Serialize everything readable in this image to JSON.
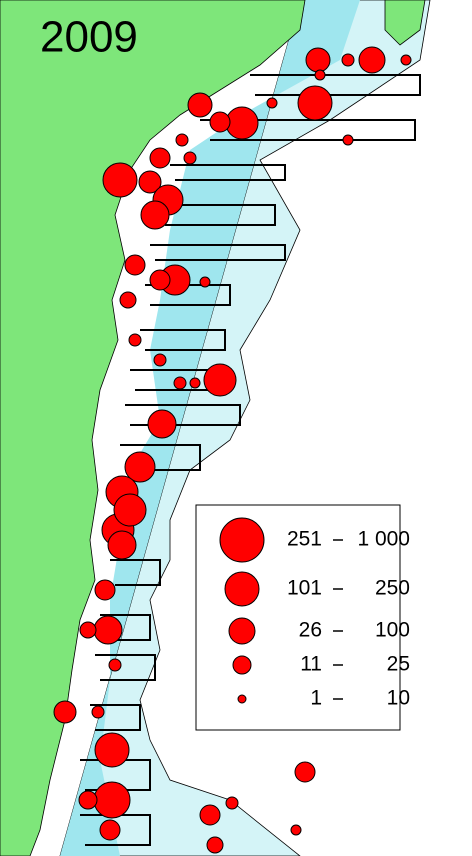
{
  "title": "2009",
  "legend": {
    "items": [
      {
        "from": "251",
        "to": "1 000"
      },
      {
        "from": "101",
        "to": "250"
      },
      {
        "from": "26",
        "to": "100"
      },
      {
        "from": "11",
        "to": "25"
      },
      {
        "from": "1",
        "to": "10"
      }
    ]
  }
}
